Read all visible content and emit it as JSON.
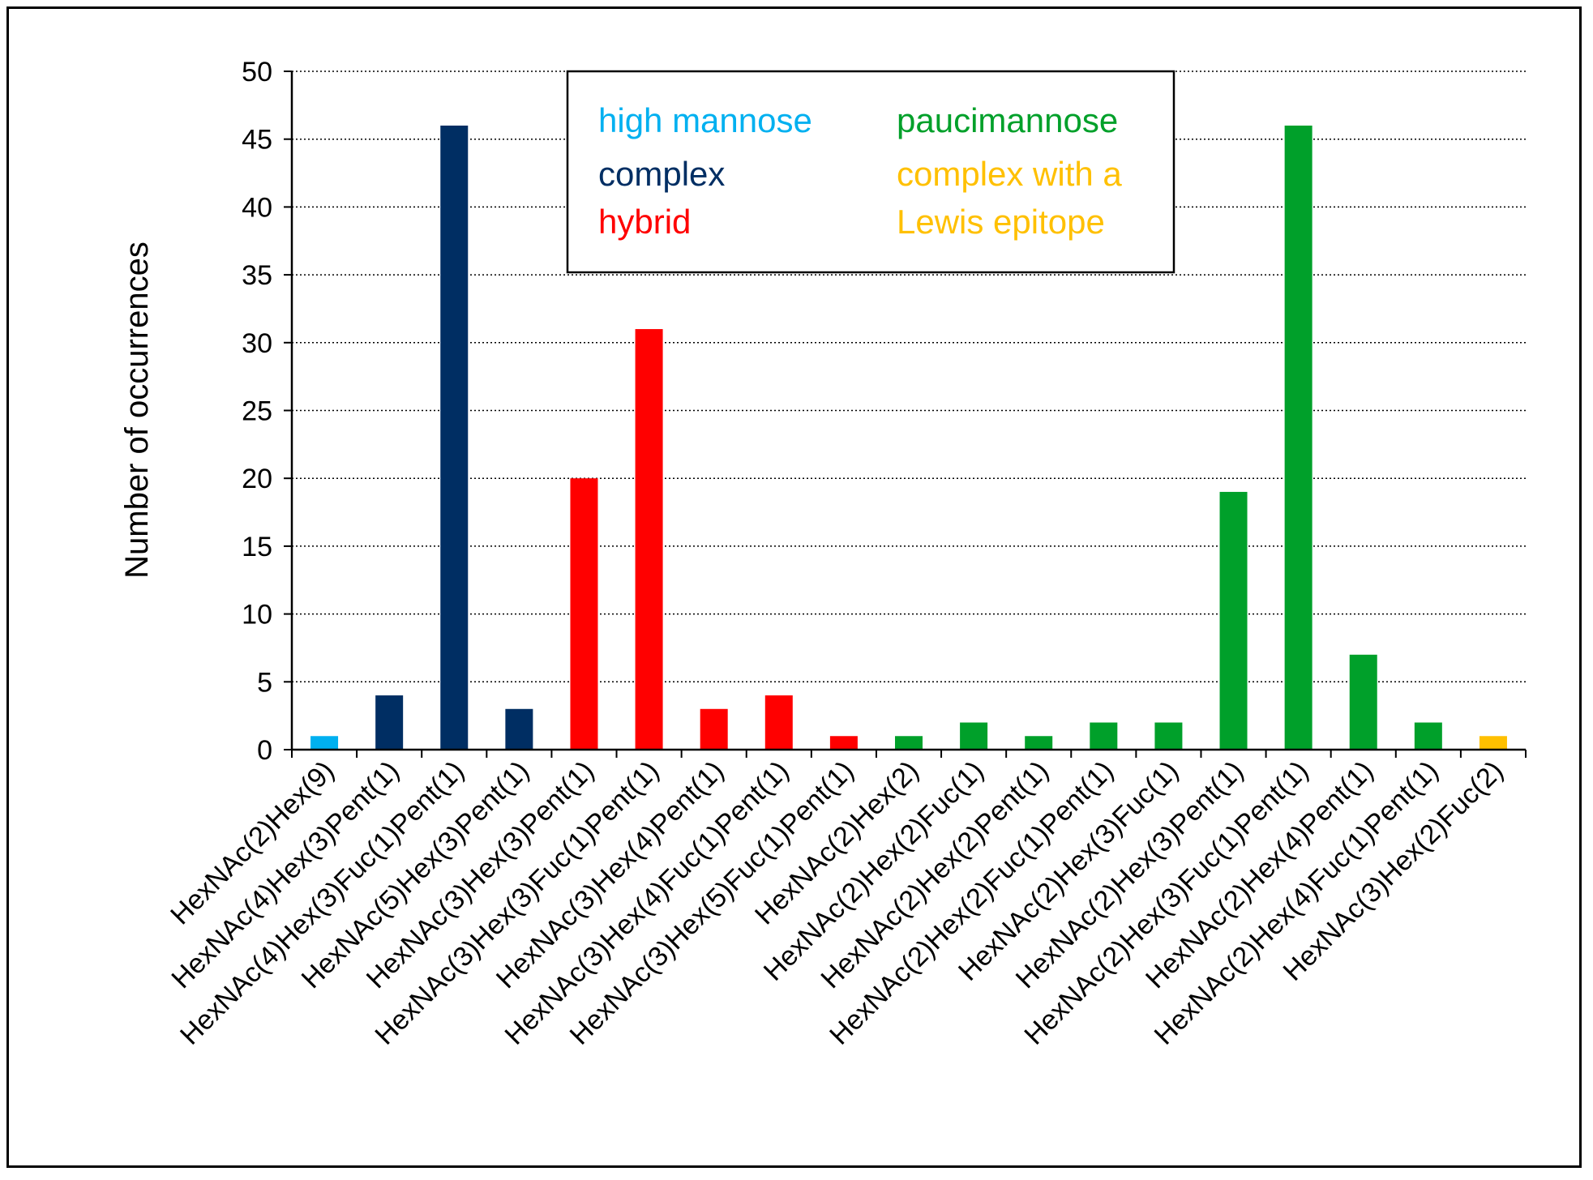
{
  "chart_data": {
    "type": "bar",
    "title": "",
    "xlabel": "",
    "ylabel": "Number of occurrences",
    "ylim": [
      0,
      50
    ],
    "yticks": [
      0,
      5,
      10,
      15,
      20,
      25,
      30,
      35,
      40,
      45,
      50
    ],
    "grid": "horizontal dotted",
    "legend_position": "top-center",
    "legend": [
      {
        "label": "high mannose",
        "color": "#00b0f0"
      },
      {
        "label": "paucimannose",
        "color": "#00a02a"
      },
      {
        "label": "complex",
        "color": "#002e63"
      },
      {
        "label": "complex with a",
        "color": "#ffc000"
      },
      {
        "label": "hybrid",
        "color": "#ff0000"
      },
      {
        "label": "Lewis epitope",
        "color": "#ffc000"
      }
    ],
    "bars": [
      {
        "category": "HexNAc(2)Hex(9)",
        "value": 1,
        "color": "#00b0f0"
      },
      {
        "category": "HexNAc(4)Hex(3)Pent(1)",
        "value": 4,
        "color": "#002e63"
      },
      {
        "category": "HexNAc(4)Hex(3)Fuc(1)Pent(1)",
        "value": 46,
        "color": "#002e63"
      },
      {
        "category": "HexNAc(5)Hex(3)Pent(1)",
        "value": 3,
        "color": "#002e63"
      },
      {
        "category": "HexNAc(3)Hex(3)Pent(1)",
        "value": 20,
        "color": "#ff0000"
      },
      {
        "category": "HexNAc(3)Hex(3)Fuc(1)Pent(1)",
        "value": 31,
        "color": "#ff0000"
      },
      {
        "category": "HexNAc(3)Hex(4)Pent(1)",
        "value": 3,
        "color": "#ff0000"
      },
      {
        "category": "HexNAc(3)Hex(4)Fuc(1)Pent(1)",
        "value": 4,
        "color": "#ff0000"
      },
      {
        "category": "HexNAc(3)Hex(5)Fuc(1)Pent(1)",
        "value": 1,
        "color": "#ff0000"
      },
      {
        "category": "HexNAc(2)Hex(2)",
        "value": 1,
        "color": "#00a02a"
      },
      {
        "category": "HexNAc(2)Hex(2)Fuc(1)",
        "value": 2,
        "color": "#00a02a"
      },
      {
        "category": "HexNAc(2)Hex(2)Pent(1)",
        "value": 1,
        "color": "#00a02a"
      },
      {
        "category": "HexNAc(2)Hex(2)Fuc(1)Pent(1)",
        "value": 2,
        "color": "#00a02a"
      },
      {
        "category": "HexNAc(2)Hex(3)Fuc(1)",
        "value": 2,
        "color": "#00a02a"
      },
      {
        "category": "HexNAc(2)Hex(3)Pent(1)",
        "value": 19,
        "color": "#00a02a"
      },
      {
        "category": "HexNAc(2)Hex(3)Fuc(1)Pent(1)",
        "value": 46,
        "color": "#00a02a"
      },
      {
        "category": "HexNAc(2)Hex(4)Pent(1)",
        "value": 7,
        "color": "#00a02a"
      },
      {
        "category": "HexNAc(2)Hex(4)Fuc(1)Pent(1)",
        "value": 2,
        "color": "#00a02a"
      },
      {
        "category": "HexNAc(3)Hex(2)Fuc(2)",
        "value": 1,
        "color": "#ffc000"
      }
    ]
  }
}
